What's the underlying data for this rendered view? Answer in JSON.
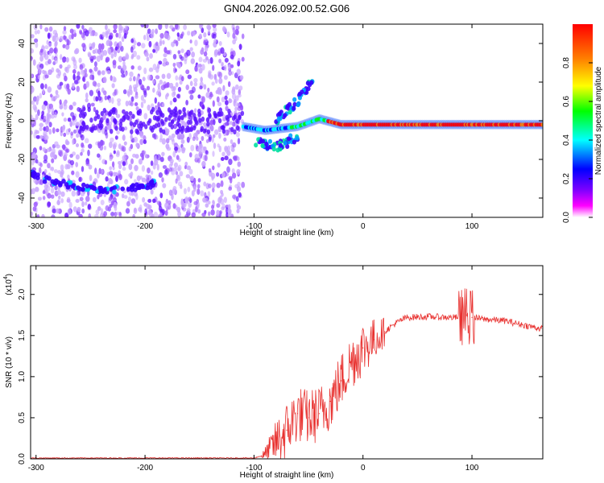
{
  "title": "GN04.2026.092.00.52.G06",
  "chart_data": [
    {
      "type": "heatmap",
      "name": "spectrogram",
      "xlabel": "Height of straight line (km)",
      "ylabel": "Frequency (Hz)",
      "xlim": [
        -305,
        165
      ],
      "ylim": [
        -50,
        50
      ],
      "xticks": [
        -300,
        -200,
        -100,
        0,
        100
      ],
      "yticks": [
        -40,
        -20,
        0,
        20,
        40
      ],
      "xtick_labels": [
        "-300",
        "-200",
        "-100",
        "0",
        "100"
      ],
      "ytick_labels": [
        "-40",
        "-20",
        "0",
        "20",
        "40"
      ],
      "colorbar": {
        "label": "Normalized spectral amplitude",
        "range": [
          0,
          1
        ],
        "ticks": [
          0.0,
          0.2,
          0.4,
          0.6,
          0.8
        ],
        "tick_labels": [
          "0.0",
          "0.2",
          "0.4",
          "0.6",
          "0.8"
        ],
        "colormap": [
          "#ffffff",
          "#ff00ff",
          "#8000ff",
          "#0000ff",
          "#00ffff",
          "#00ff00",
          "#ffff00",
          "#ff8000",
          "#ff0000"
        ]
      },
      "features": {
        "noise_region_x": [
          -305,
          -110
        ],
        "lower_band": {
          "x": [
            -305,
            -300,
            -280,
            -260,
            -240,
            -220,
            -200,
            -190
          ],
          "y": [
            -27,
            -29,
            -32,
            -34,
            -36,
            -35,
            -34,
            -32
          ]
        },
        "carrier": {
          "x": [
            -110,
            -90,
            -60,
            -40,
            -20,
            0,
            50,
            100,
            165
          ],
          "y": [
            -3,
            -5,
            -3,
            1,
            -2,
            -2,
            -2,
            -2,
            -2
          ]
        },
        "upper_arm": {
          "x": [
            -80,
            -60,
            -45
          ],
          "y": [
            0,
            10,
            22
          ]
        },
        "lower_arm": {
          "x": [
            -100,
            -80,
            -60
          ],
          "y": [
            -10,
            -14,
            -8
          ]
        }
      }
    },
    {
      "type": "line",
      "name": "snr",
      "xlabel": "Height of straight line (km)",
      "ylabel": "SNR (10 * v/v)",
      "y_multiplier_label": "(x10",
      "y_multiplier_exp": "4",
      "xlim": [
        -305,
        165
      ],
      "ylim": [
        0,
        2.35
      ],
      "xticks": [
        -300,
        -200,
        -100,
        0,
        100
      ],
      "yticks": [
        0.0,
        0.5,
        1.0,
        1.5,
        2.0
      ],
      "xtick_labels": [
        "-300",
        "-200",
        "-100",
        "0",
        "100"
      ],
      "ytick_labels": [
        "0.0",
        "0.5",
        "1.0",
        "1.5",
        "2.0"
      ],
      "color": "#e8312f",
      "series": [
        {
          "name": "SNR",
          "x": [
            -305,
            -250,
            -200,
            -150,
            -100,
            -90,
            -80,
            -70,
            -60,
            -50,
            -40,
            -30,
            -20,
            -10,
            0,
            10,
            20,
            30,
            40,
            60,
            80,
            90,
            95,
            100,
            110,
            130,
            150,
            165
          ],
          "y": [
            0.01,
            0.01,
            0.01,
            0.01,
            0.01,
            0.05,
            0.2,
            0.35,
            0.55,
            0.5,
            0.55,
            0.7,
            0.95,
            1.2,
            1.35,
            1.45,
            1.55,
            1.65,
            1.72,
            1.73,
            1.72,
            1.72,
            1.75,
            1.72,
            1.7,
            1.68,
            1.62,
            1.58
          ]
        }
      ]
    }
  ]
}
